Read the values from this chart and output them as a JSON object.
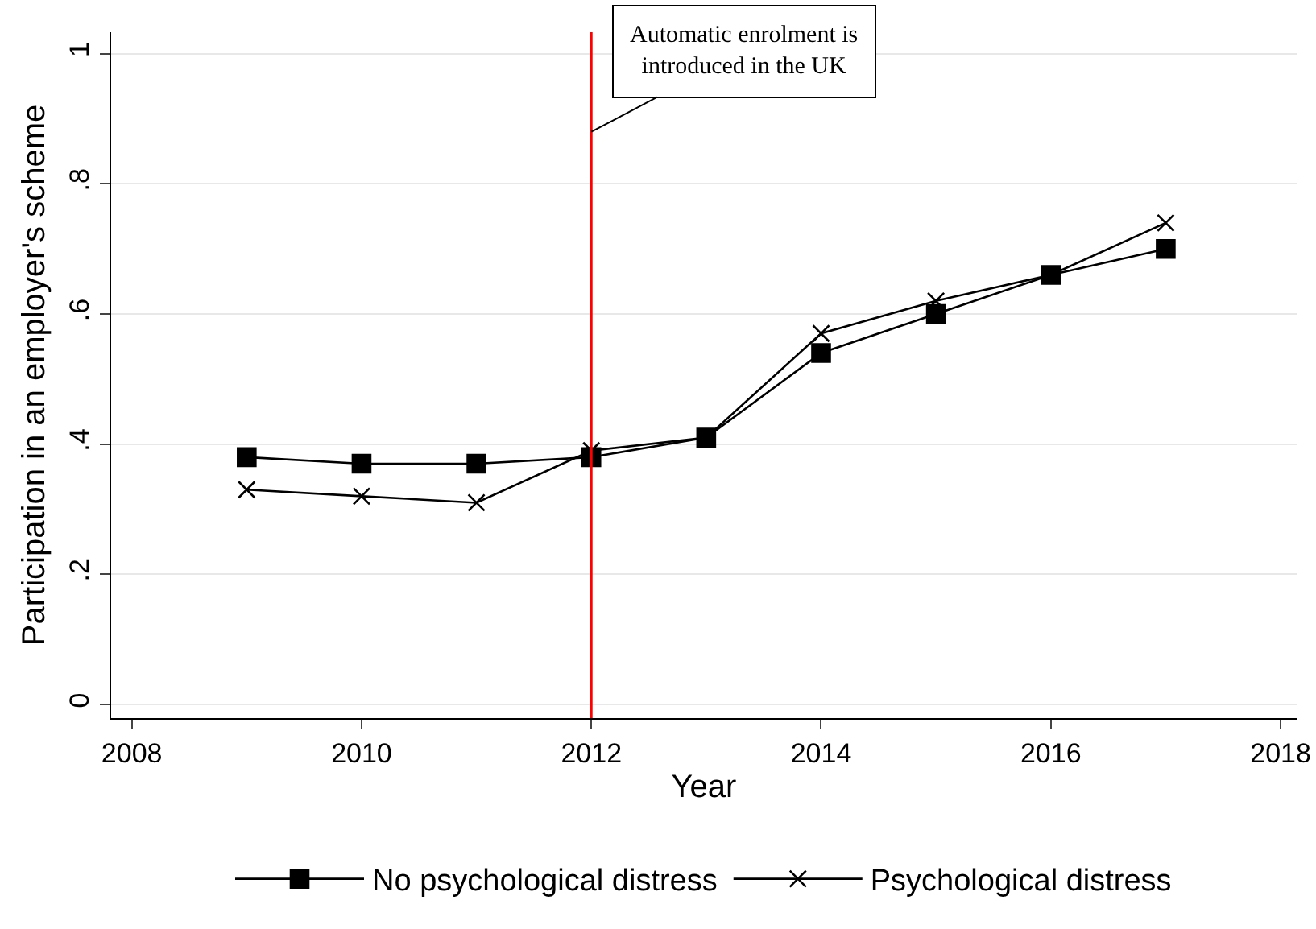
{
  "chart_data": {
    "type": "line",
    "xlabel": "Year",
    "ylabel": "Participation in an employer's scheme",
    "x": [
      2009,
      2010,
      2011,
      2012,
      2013,
      2014,
      2015,
      2016,
      2017
    ],
    "series": [
      {
        "name": "No psychological distress",
        "color": "#000000",
        "marker": "square",
        "values": [
          0.38,
          0.37,
          0.37,
          0.38,
          0.41,
          0.54,
          0.6,
          0.66,
          0.7
        ]
      },
      {
        "name": "Psychological distress",
        "color": "#000000",
        "marker": "cross",
        "values": [
          0.33,
          0.32,
          0.31,
          0.39,
          0.41,
          0.57,
          0.62,
          0.66,
          0.74
        ]
      }
    ],
    "xlim": [
      2007.82,
      2018.14
    ],
    "xticks": [
      2008,
      2010,
      2012,
      2014,
      2016,
      2018
    ],
    "ylim": [
      -0.021,
      1.033
    ],
    "yticks": [
      {
        "value": 0,
        "label": "0"
      },
      {
        "value": 0.2,
        "label": ".2"
      },
      {
        "value": 0.4,
        "label": ".4"
      },
      {
        "value": 0.6,
        "label": ".6"
      },
      {
        "value": 0.8,
        "label": ".8"
      },
      {
        "value": 1,
        "label": "1"
      }
    ],
    "ref_lines": [
      {
        "axis": "x",
        "value": 2012,
        "color": "#ff0000"
      }
    ],
    "annotations": [
      {
        "text": "Automatic enrolment is\nintroduced in the UK",
        "x": 2012,
        "y": 0.88
      }
    ],
    "grid": "y",
    "legend": "bottom",
    "line_style": "solid"
  }
}
